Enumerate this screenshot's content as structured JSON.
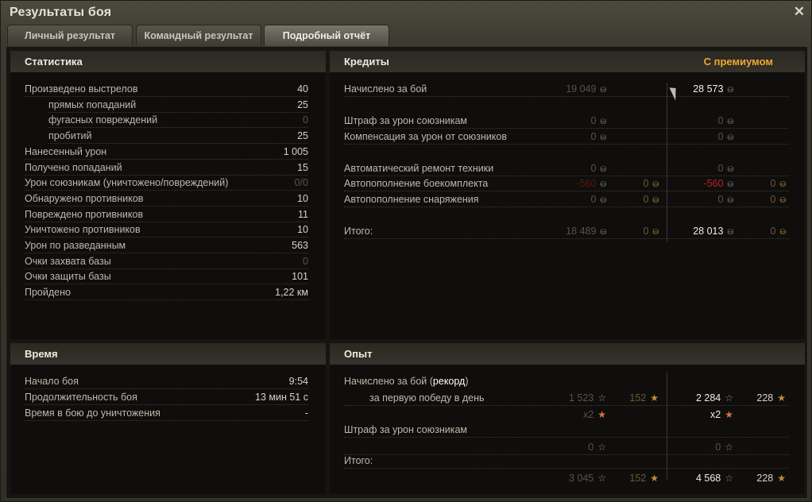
{
  "window": {
    "title": "Результаты боя",
    "close_icon": "close-icon"
  },
  "tabs": [
    {
      "label": "Личный результат",
      "active": false
    },
    {
      "label": "Командный результат",
      "active": false
    },
    {
      "label": "Подробный отчёт",
      "active": true
    }
  ],
  "colors": {
    "premium": "#f0a830",
    "negative": "#c02020",
    "gold": "#c09030"
  },
  "statistics": {
    "title": "Статистика",
    "rows": [
      {
        "label": "Произведено выстрелов",
        "value": "40"
      },
      {
        "label": "прямых попаданий",
        "value": "25",
        "indent": true
      },
      {
        "label": "фугасных повреждений",
        "value": "0",
        "indent": true,
        "dim": true
      },
      {
        "label": "пробитий",
        "value": "25",
        "indent": true
      },
      {
        "label": "Нанесенный урон",
        "value": "1 005"
      },
      {
        "label": "Получено попаданий",
        "value": "15"
      },
      {
        "label": "Урон союзникам (уничтожено/повреждений)",
        "value": "0/0",
        "dim": true
      },
      {
        "label": "Обнаружено противников",
        "value": "10"
      },
      {
        "label": "Повреждено противников",
        "value": "11"
      },
      {
        "label": "Уничтожено противников",
        "value": "10"
      },
      {
        "label": "Урон по разведанным",
        "value": "563"
      },
      {
        "label": "Очки захвата базы",
        "value": "0",
        "dim": true
      },
      {
        "label": "Очки защиты базы",
        "value": "101"
      },
      {
        "label": "Пройдено",
        "value": "1,22 км"
      }
    ]
  },
  "time": {
    "title": "Время",
    "rows": [
      {
        "label": "Начало боя",
        "value": "9:54"
      },
      {
        "label": "Продолжительность боя",
        "value": "13 мин 51 с"
      },
      {
        "label": "Время в бою до уничтожения",
        "value": "-"
      }
    ]
  },
  "credits": {
    "title": "Кредиты",
    "premium_label": "С премиумом",
    "rows": [
      {
        "label": "Начислено за бой",
        "cells": [
          {
            "v": "19 049",
            "c": "dim",
            "icon": "credits-icon"
          },
          null,
          {
            "v": "28 573",
            "c": "white",
            "icon": "credits-icon"
          },
          null
        ]
      },
      {
        "label": "Штраф за урон союзникам",
        "cells": [
          {
            "v": "0",
            "c": "dim",
            "icon": "credits-icon"
          },
          null,
          {
            "v": "0",
            "c": "dim",
            "icon": "credits-icon"
          },
          null
        ]
      },
      {
        "label": "Компенсация за урон от союзников",
        "cells": [
          {
            "v": "0",
            "c": "dim",
            "icon": "credits-icon"
          },
          null,
          {
            "v": "0",
            "c": "dim",
            "icon": "credits-icon"
          },
          null
        ]
      },
      {
        "label": "Автоматический ремонт техники",
        "cells": [
          {
            "v": "0",
            "c": "dim",
            "icon": "credits-icon"
          },
          null,
          {
            "v": "0",
            "c": "dim",
            "icon": "credits-icon"
          },
          null
        ]
      },
      {
        "label": "Автопополнение боекомплекта",
        "cells": [
          {
            "v": "-560",
            "c": "reddim",
            "icon": "credits-icon"
          },
          {
            "v": "0",
            "c": "goldim",
            "icon": "gold-icon"
          },
          {
            "v": "-560",
            "c": "red",
            "icon": "credits-icon"
          },
          {
            "v": "0",
            "c": "goldim",
            "icon": "gold-icon"
          }
        ]
      },
      {
        "label": "Автопополнение снаряжения",
        "cells": [
          {
            "v": "0",
            "c": "dim",
            "icon": "credits-icon"
          },
          {
            "v": "0",
            "c": "goldim",
            "icon": "gold-icon"
          },
          {
            "v": "0",
            "c": "dim",
            "icon": "credits-icon"
          },
          {
            "v": "0",
            "c": "goldim",
            "icon": "gold-icon"
          }
        ]
      },
      {
        "label": "Итого:",
        "cells": [
          {
            "v": "18 489",
            "c": "dim",
            "icon": "credits-icon"
          },
          {
            "v": "0",
            "c": "goldim",
            "icon": "gold-icon"
          },
          {
            "v": "28 013",
            "c": "white",
            "icon": "credits-icon"
          },
          {
            "v": "0",
            "c": "goldim",
            "icon": "gold-icon"
          }
        ]
      }
    ]
  },
  "experience": {
    "title": "Опыт",
    "earned_label": "Начислено за бой (",
    "record_label": "рекорд",
    "earned_label_end": ")",
    "rows": [
      {
        "label": "за первую победу в день",
        "indent": true,
        "cells": [
          {
            "v": "1 523",
            "c": "dim",
            "icon": "xp-star-icon"
          },
          {
            "v": "152",
            "c": "goldim",
            "icon": "free-xp-star-icon"
          },
          {
            "v": "2 284",
            "c": "white",
            "icon": "xp-star-icon"
          },
          {
            "v": "228",
            "c": "",
            "icon": "free-xp-star-icon"
          }
        ]
      },
      {
        "label": "",
        "noline": true,
        "cells": [
          {
            "v": "x2",
            "c": "dim",
            "icon": "multiplier-star-icon"
          },
          null,
          {
            "v": "x2",
            "c": "white",
            "icon": "multiplier-star-icon"
          },
          null
        ]
      },
      {
        "label": "Штраф за урон союзникам",
        "cells": [
          null,
          null,
          null,
          null
        ]
      },
      {
        "label": "",
        "cells": [
          {
            "v": "0",
            "c": "dim",
            "icon": "xp-star-icon"
          },
          null,
          {
            "v": "0",
            "c": "dim",
            "icon": "xp-star-icon"
          },
          null
        ]
      },
      {
        "label": "Итого:",
        "cells": [
          null,
          null,
          null,
          null
        ]
      },
      {
        "label": "",
        "noline": true,
        "cells": [
          {
            "v": "3 045",
            "c": "dim",
            "icon": "xp-star-icon"
          },
          {
            "v": "152",
            "c": "goldim",
            "icon": "free-xp-star-icon"
          },
          {
            "v": "4 568",
            "c": "white",
            "icon": "xp-star-icon"
          },
          {
            "v": "228",
            "c": "",
            "icon": "free-xp-star-icon"
          }
        ]
      }
    ]
  }
}
